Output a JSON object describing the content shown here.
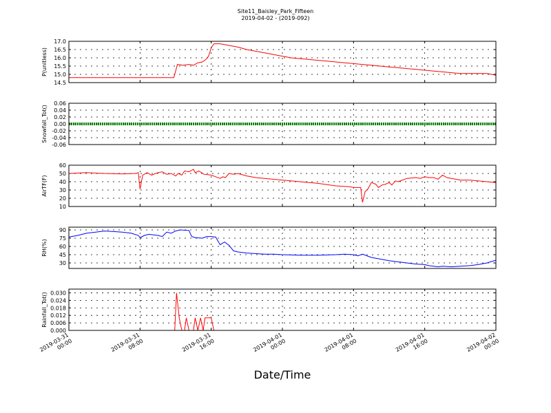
{
  "chart_data": {
    "title": "Site11_Baisley_Park_Fifteen",
    "subtitle": "2019-04-02 - (2019-092)",
    "xlabel": "Date/Time",
    "type": "line",
    "x_range": [
      0,
      48
    ],
    "x_ticks": [
      {
        "x": 0,
        "line1": "2019-03-31",
        "line2": "00:00"
      },
      {
        "x": 8,
        "line1": "2019-03-31",
        "line2": "08:00"
      },
      {
        "x": 16,
        "line1": "2019-03-31",
        "line2": "16:00"
      },
      {
        "x": 24,
        "line1": "2019-04-01",
        "line2": "00:00"
      },
      {
        "x": 32,
        "line1": "2019-04-01",
        "line2": "08:00"
      },
      {
        "x": 40,
        "line1": "2019-04-01",
        "line2": "16:00"
      },
      {
        "x": 48,
        "line1": "2019-04-02",
        "line2": "00:00"
      }
    ],
    "panels": [
      {
        "id": "p",
        "ylabel": "P(unitless)",
        "color": "#ff0000",
        "ylim": [
          14.5,
          17.0
        ],
        "yticks": [
          "17.0",
          "16.5",
          "16.0",
          "15.5",
          "15.0",
          "14.5"
        ],
        "ytick_values": [
          17.0,
          16.5,
          16.0,
          15.5,
          15.0,
          14.5
        ],
        "series": [
          [
            0,
            14.8
          ],
          [
            11.8,
            14.8
          ],
          [
            12.2,
            15.6
          ],
          [
            12.8,
            15.55
          ],
          [
            13.5,
            15.6
          ],
          [
            14,
            15.55
          ],
          [
            14.5,
            15.7
          ],
          [
            15,
            15.75
          ],
          [
            15.4,
            15.9
          ],
          [
            15.7,
            16.1
          ],
          [
            16,
            16.6
          ],
          [
            16.3,
            16.85
          ],
          [
            17,
            16.85
          ],
          [
            18,
            16.75
          ],
          [
            19,
            16.65
          ],
          [
            20,
            16.5
          ],
          [
            21,
            16.4
          ],
          [
            22,
            16.3
          ],
          [
            23,
            16.2
          ],
          [
            24,
            16.1
          ],
          [
            25,
            16.0
          ],
          [
            26,
            15.95
          ],
          [
            27,
            15.9
          ],
          [
            28,
            15.85
          ],
          [
            29,
            15.8
          ],
          [
            30,
            15.75
          ],
          [
            31,
            15.7
          ],
          [
            32,
            15.65
          ],
          [
            33,
            15.6
          ],
          [
            34,
            15.55
          ],
          [
            35,
            15.5
          ],
          [
            36,
            15.45
          ],
          [
            37,
            15.4
          ],
          [
            38,
            15.35
          ],
          [
            39,
            15.3
          ],
          [
            40,
            15.25
          ],
          [
            41,
            15.2
          ],
          [
            42,
            15.15
          ],
          [
            43,
            15.1
          ],
          [
            44,
            15.05
          ],
          [
            45,
            15.05
          ],
          [
            46,
            15.05
          ],
          [
            47,
            15.05
          ],
          [
            47.5,
            15.0
          ],
          [
            48,
            14.95
          ]
        ]
      },
      {
        "id": "snow",
        "ylabel": "Snowfall_Tot()",
        "color": "#008000",
        "ylim": [
          -0.06,
          0.06
        ],
        "yticks": [
          "0.06",
          "0.04",
          "0.02",
          "0.00",
          "-0.02",
          "-0.04",
          "-0.06"
        ],
        "ytick_values": [
          0.06,
          0.04,
          0.02,
          0.0,
          -0.02,
          -0.04,
          -0.06
        ],
        "series": [
          [
            0,
            0
          ],
          [
            48,
            0
          ]
        ],
        "thick": true
      },
      {
        "id": "air",
        "ylabel": "AirTF(F)",
        "color": "#ff0000",
        "ylim": [
          10,
          60
        ],
        "yticks": [
          "60",
          "50",
          "40",
          "30",
          "20",
          "10"
        ],
        "ytick_values": [
          60,
          50,
          40,
          30,
          20,
          10
        ],
        "series": [
          [
            0,
            50
          ],
          [
            2,
            51
          ],
          [
            4,
            50
          ],
          [
            6,
            49.5
          ],
          [
            7.5,
            50
          ],
          [
            7.8,
            51
          ],
          [
            8,
            31
          ],
          [
            8.3,
            48
          ],
          [
            8.8,
            51
          ],
          [
            9.3,
            48
          ],
          [
            10,
            51
          ],
          [
            10.5,
            52
          ],
          [
            11,
            49
          ],
          [
            11.5,
            50
          ],
          [
            12,
            47
          ],
          [
            12.3,
            50
          ],
          [
            12.7,
            48
          ],
          [
            13,
            53
          ],
          [
            13.5,
            52
          ],
          [
            14,
            55
          ],
          [
            14.2,
            51
          ],
          [
            14.6,
            53
          ],
          [
            15.2,
            49
          ],
          [
            16,
            48
          ],
          [
            16.5,
            46
          ],
          [
            17,
            44
          ],
          [
            17.3,
            46
          ],
          [
            17.6,
            45
          ],
          [
            18,
            50
          ],
          [
            18.5,
            49
          ],
          [
            19,
            50
          ],
          [
            20,
            47
          ],
          [
            21,
            45
          ],
          [
            22,
            44
          ],
          [
            24,
            42
          ],
          [
            26,
            40
          ],
          [
            28,
            38
          ],
          [
            30,
            35
          ],
          [
            31.5,
            34
          ],
          [
            32,
            33
          ],
          [
            32.8,
            33
          ],
          [
            33,
            15
          ],
          [
            33.3,
            28
          ],
          [
            33.6,
            31
          ],
          [
            34,
            39
          ],
          [
            34.5,
            37
          ],
          [
            34.8,
            33
          ],
          [
            35.2,
            36
          ],
          [
            35.6,
            37
          ],
          [
            36,
            39
          ],
          [
            36.3,
            36
          ],
          [
            36.7,
            41
          ],
          [
            37,
            40
          ],
          [
            37.5,
            42
          ],
          [
            38,
            44
          ],
          [
            39,
            45
          ],
          [
            39.5,
            44
          ],
          [
            40,
            46
          ],
          [
            40.5,
            45
          ],
          [
            41,
            45
          ],
          [
            41.5,
            43
          ],
          [
            42,
            48
          ],
          [
            42.5,
            45
          ],
          [
            43,
            44
          ],
          [
            43.5,
            43
          ],
          [
            44,
            42
          ],
          [
            45,
            42
          ],
          [
            46,
            41
          ],
          [
            47,
            40
          ],
          [
            48,
            39
          ]
        ]
      },
      {
        "id": "rh",
        "ylabel": "RH(%)",
        "color": "#0000ff",
        "ylim": [
          20,
          95
        ],
        "yticks": [
          "90",
          "75",
          "60",
          "45",
          "30"
        ],
        "ytick_values": [
          90,
          75,
          60,
          45,
          30
        ],
        "series": [
          [
            0,
            77
          ],
          [
            1,
            80
          ],
          [
            2,
            84
          ],
          [
            3,
            86
          ],
          [
            4,
            88
          ],
          [
            5,
            87
          ],
          [
            6,
            86
          ],
          [
            7,
            84
          ],
          [
            7.8,
            80
          ],
          [
            8,
            76
          ],
          [
            8.5,
            80
          ],
          [
            9,
            82
          ],
          [
            10,
            80
          ],
          [
            10.5,
            78
          ],
          [
            11,
            86
          ],
          [
            11.5,
            84
          ],
          [
            12,
            88
          ],
          [
            12.5,
            90
          ],
          [
            13.5,
            89
          ],
          [
            13.8,
            78
          ],
          [
            14.2,
            76
          ],
          [
            15,
            75
          ],
          [
            15.5,
            78
          ],
          [
            16,
            78
          ],
          [
            16.5,
            77
          ],
          [
            17,
            63
          ],
          [
            17.5,
            68
          ],
          [
            18,
            62
          ],
          [
            18.5,
            52
          ],
          [
            19,
            50
          ],
          [
            20,
            48
          ],
          [
            22,
            46
          ],
          [
            23,
            46
          ],
          [
            24,
            45
          ],
          [
            26,
            44
          ],
          [
            28,
            44
          ],
          [
            30,
            45
          ],
          [
            31,
            46
          ],
          [
            32,
            45
          ],
          [
            32.5,
            43
          ],
          [
            33,
            46
          ],
          [
            33.5,
            43
          ],
          [
            34,
            40
          ],
          [
            35,
            37
          ],
          [
            36,
            34
          ],
          [
            37,
            32
          ],
          [
            38,
            30
          ],
          [
            39,
            28
          ],
          [
            40,
            27
          ],
          [
            40.5,
            25
          ],
          [
            41,
            24
          ],
          [
            41.5,
            23
          ],
          [
            42,
            24
          ],
          [
            43,
            23
          ],
          [
            44,
            24
          ],
          [
            45,
            25
          ],
          [
            46,
            27
          ],
          [
            47,
            30
          ],
          [
            48,
            35
          ]
        ]
      },
      {
        "id": "rain",
        "ylabel": "Rainfall_Tot()",
        "color": "#ff0000",
        "ylim": [
          0,
          0.033
        ],
        "yticks": [
          "0.030",
          "0.024",
          "0.018",
          "0.012",
          "0.006",
          "0.000"
        ],
        "ytick_values": [
          0.03,
          0.024,
          0.018,
          0.012,
          0.006,
          0.0
        ],
        "series": [
          [
            0,
            0
          ],
          [
            11.9,
            0
          ],
          [
            12.1,
            0.03
          ],
          [
            12.4,
            0.01
          ],
          [
            12.7,
            0
          ],
          [
            13,
            0
          ],
          [
            13.2,
            0.01
          ],
          [
            13.5,
            0
          ],
          [
            14,
            0
          ],
          [
            14.2,
            0.01
          ],
          [
            14.5,
            0
          ],
          [
            14.8,
            0.01
          ],
          [
            15.1,
            0
          ],
          [
            15.3,
            0.01
          ],
          [
            16,
            0.01
          ],
          [
            16.3,
            0
          ],
          [
            48,
            0
          ]
        ]
      }
    ]
  }
}
